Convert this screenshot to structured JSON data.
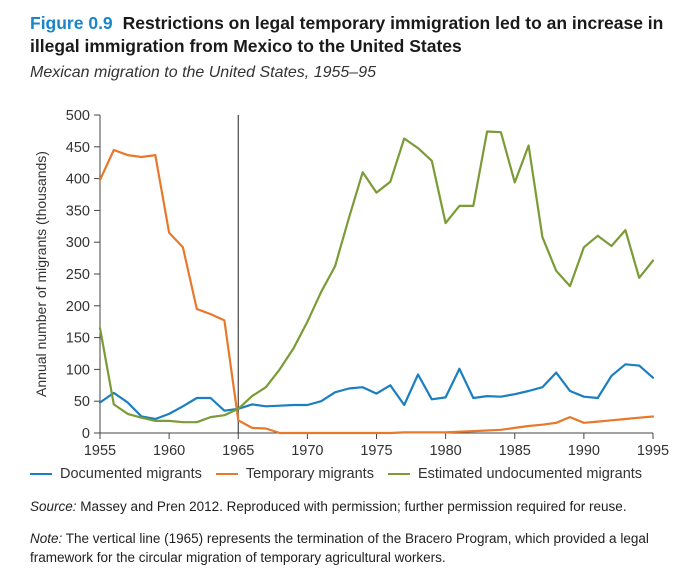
{
  "figure": {
    "label": "Figure 0.9",
    "title": "Restrictions on legal temporary immigration led to an increase in illegal immigration from Mexico to the United States",
    "subtitle": "Mexican migration to the United States, 1955–95"
  },
  "chart_data": {
    "type": "line",
    "xlabel": "",
    "ylabel": "Annual number of migrants (thousands)",
    "xlim": [
      1955,
      1995
    ],
    "ylim": [
      0,
      500
    ],
    "x_ticks": [
      "1955",
      "1960",
      "1965",
      "1970",
      "1975",
      "1980",
      "1985",
      "1990",
      "1995"
    ],
    "y_ticks": [
      "0",
      "50",
      "100",
      "150",
      "200",
      "250",
      "300",
      "350",
      "400",
      "450",
      "500"
    ],
    "x": [
      1955,
      1956,
      1957,
      1958,
      1959,
      1960,
      1961,
      1962,
      1963,
      1964,
      1965,
      1966,
      1967,
      1968,
      1969,
      1970,
      1971,
      1972,
      1973,
      1974,
      1975,
      1976,
      1977,
      1978,
      1979,
      1980,
      1981,
      1982,
      1983,
      1984,
      1985,
      1986,
      1987,
      1988,
      1989,
      1990,
      1991,
      1992,
      1993,
      1994,
      1995
    ],
    "vertical_line": 1965,
    "legend_position": "bottom",
    "series": [
      {
        "name": "Documented migrants",
        "color": "#1a7fc1",
        "values": [
          48,
          63,
          48,
          26,
          22,
          30,
          42,
          55,
          55,
          35,
          38,
          45,
          42,
          43,
          44,
          44,
          50,
          64,
          70,
          72,
          62,
          75,
          44,
          92,
          53,
          56,
          101,
          55,
          58,
          57,
          61,
          66,
          72,
          95,
          66,
          57,
          55,
          90,
          108,
          106,
          87
        ]
      },
      {
        "name": "Temporary migrants",
        "color": "#e8782a",
        "values": [
          398,
          445,
          437,
          434,
          437,
          315,
          292,
          195,
          187,
          177,
          20,
          8,
          7,
          0,
          0,
          0,
          0,
          0,
          0,
          0,
          0,
          0,
          1,
          1,
          1,
          1,
          2,
          3,
          4,
          5,
          8,
          11,
          13,
          16,
          25,
          16,
          18,
          20,
          22,
          24,
          26
        ]
      },
      {
        "name": "Estimated undocumented migrants",
        "color": "#7a9b35",
        "values": [
          165,
          45,
          30,
          24,
          19,
          19,
          17,
          17,
          25,
          28,
          38,
          58,
          72,
          100,
          133,
          175,
          222,
          262,
          338,
          410,
          378,
          395,
          463,
          448,
          428,
          330,
          357,
          357,
          474,
          473,
          394,
          452,
          308,
          255,
          231,
          292,
          310,
          294,
          319,
          244,
          271
        ]
      }
    ]
  },
  "source": {
    "label": "Source:",
    "text": "Massey and Pren 2012. Reproduced with permission; further permission required for reuse."
  },
  "note": {
    "label": "Note:",
    "text": "The vertical line (1965) represents the termination of the Bracero Program, which provided a legal framework for the circular migration of temporary agricultural workers."
  }
}
